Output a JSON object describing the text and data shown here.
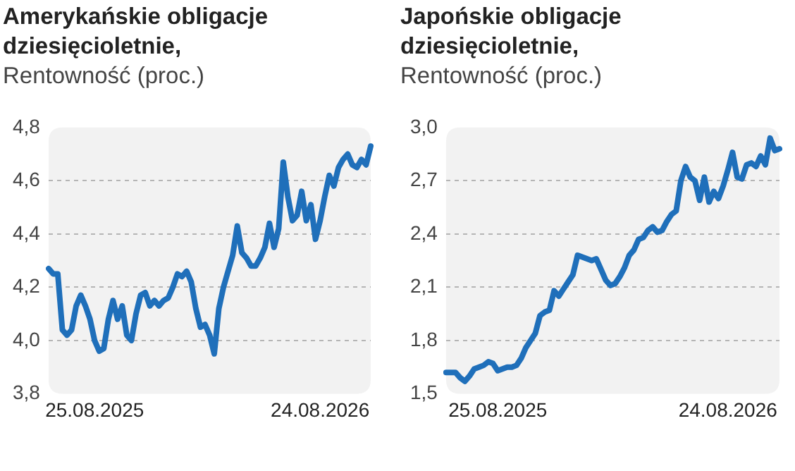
{
  "chart_data": [
    {
      "type": "line",
      "title": "Amerykańskie obligacje dziesięcioletnie,",
      "subtitle": "Rentowność (proc.)",
      "categories": [
        null,
        null,
        null,
        null,
        null,
        null,
        null,
        null,
        null,
        null,
        "25.08.2025",
        null,
        null,
        null,
        null,
        null,
        null,
        null,
        null,
        null,
        null,
        null,
        null,
        null,
        null,
        null,
        null,
        null,
        null,
        null,
        null,
        null,
        null,
        null,
        null,
        null,
        null,
        null,
        null,
        null,
        null,
        null,
        null,
        null,
        null,
        null,
        null,
        null,
        null,
        null,
        null,
        null,
        null,
        null,
        null,
        null,
        null,
        null,
        null,
        "24.08.2026",
        null,
        null,
        null,
        null,
        null,
        null,
        null,
        null,
        null,
        null,
        null
      ],
      "series": [
        {
          "color": "#1f6fba",
          "values": [
            4.27,
            4.25,
            4.25,
            4.04,
            4.02,
            4.04,
            4.13,
            4.17,
            4.13,
            4.08,
            4.0,
            3.96,
            3.97,
            4.08,
            4.15,
            4.08,
            4.13,
            4.02,
            4.0,
            4.1,
            4.17,
            4.18,
            4.13,
            4.15,
            4.13,
            4.15,
            4.16,
            4.2,
            4.25,
            4.24,
            4.26,
            4.22,
            4.12,
            4.05,
            4.06,
            4.02,
            3.95,
            4.12,
            4.2,
            4.26,
            4.32,
            4.43,
            4.33,
            4.31,
            4.28,
            4.28,
            4.31,
            4.35,
            4.44,
            4.35,
            4.42,
            4.67,
            4.54,
            4.45,
            4.47,
            4.56,
            4.45,
            4.51,
            4.38,
            4.45,
            4.54,
            4.62,
            4.58,
            4.65,
            4.68,
            4.7,
            4.66,
            4.65,
            4.68,
            4.66,
            4.73
          ]
        }
      ],
      "ylim": [
        3.8,
        4.8
      ],
      "yticks": [
        {
          "value": 3.8,
          "label": "3,8"
        },
        {
          "value": 4.0,
          "label": "4,0"
        },
        {
          "value": 4.2,
          "label": "4,2"
        },
        {
          "value": 4.4,
          "label": "4,4"
        },
        {
          "value": 4.6,
          "label": "4,6"
        },
        {
          "value": 4.8,
          "label": "4,8"
        }
      ],
      "grid": "y",
      "marker": "none",
      "line_style": "solid"
    },
    {
      "type": "line",
      "title": "Japońskie obligacje dziesięcioletnie,",
      "subtitle": "Rentowność (proc.)",
      "categories": [
        null,
        null,
        null,
        null,
        null,
        null,
        null,
        null,
        null,
        null,
        null,
        "25.08.2025",
        null,
        null,
        null,
        null,
        null,
        null,
        null,
        null,
        null,
        null,
        null,
        null,
        null,
        null,
        null,
        null,
        null,
        null,
        null,
        null,
        null,
        null,
        null,
        null,
        null,
        null,
        null,
        null,
        null,
        null,
        null,
        null,
        null,
        null,
        null,
        null,
        null,
        null,
        null,
        null,
        null,
        null,
        null,
        null,
        null,
        null,
        null,
        null,
        "24.08.2026",
        null,
        null,
        null,
        null,
        null,
        null,
        null,
        null,
        null,
        null,
        null
      ],
      "series": [
        {
          "color": "#1f6fba",
          "values": [
            1.62,
            1.62,
            1.62,
            1.59,
            1.57,
            1.6,
            1.64,
            1.65,
            1.66,
            1.68,
            1.67,
            1.63,
            1.64,
            1.65,
            1.65,
            1.66,
            1.7,
            1.76,
            1.8,
            1.84,
            1.94,
            1.96,
            1.97,
            2.08,
            2.05,
            2.09,
            2.13,
            2.17,
            2.28,
            2.27,
            2.26,
            2.25,
            2.26,
            2.2,
            2.14,
            2.11,
            2.12,
            2.16,
            2.21,
            2.28,
            2.31,
            2.37,
            2.38,
            2.42,
            2.44,
            2.41,
            2.42,
            2.47,
            2.51,
            2.53,
            2.7,
            2.78,
            2.72,
            2.7,
            2.59,
            2.72,
            2.58,
            2.64,
            2.6,
            2.67,
            2.76,
            2.86,
            2.72,
            2.71,
            2.79,
            2.8,
            2.78,
            2.84,
            2.79,
            2.94,
            2.87,
            2.88
          ]
        }
      ],
      "ylim": [
        1.5,
        3.0
      ],
      "yticks": [
        {
          "value": 1.5,
          "label": "1,5"
        },
        {
          "value": 1.8,
          "label": "1,8"
        },
        {
          "value": 2.1,
          "label": "2,1"
        },
        {
          "value": 2.4,
          "label": "2,4"
        },
        {
          "value": 2.7,
          "label": "2,7"
        },
        {
          "value": 3.0,
          "label": "3,0"
        }
      ],
      "grid": "y",
      "marker": "none",
      "line_style": "solid"
    }
  ]
}
